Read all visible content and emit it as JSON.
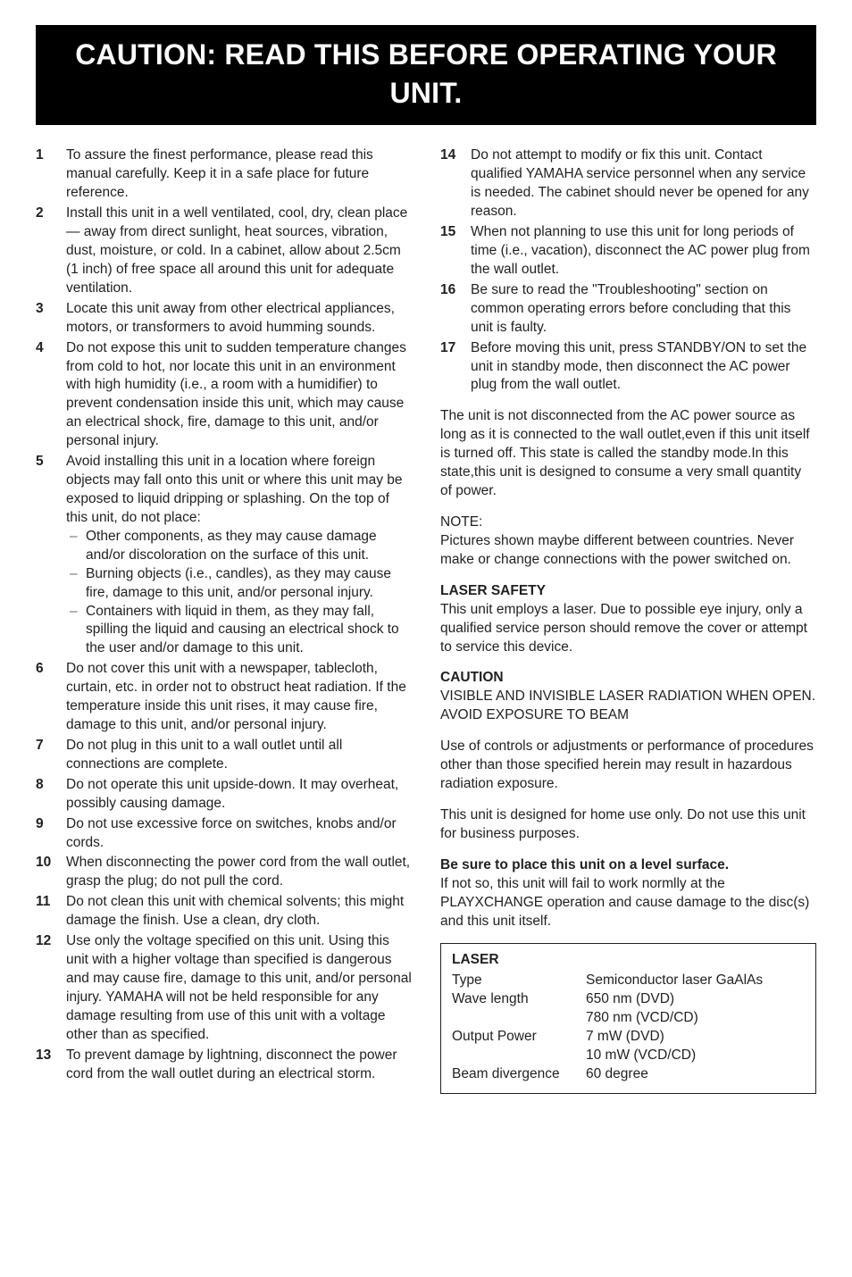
{
  "banner": "CAUTION: READ THIS BEFORE OPERATING YOUR UNIT.",
  "left": {
    "items": [
      {
        "n": "1",
        "t": "To assure the finest performance, please read this manual carefully. Keep it in a safe place for future reference."
      },
      {
        "n": "2",
        "t": "Install this unit in a well ventilated, cool, dry, clean place — away from direct sunlight, heat sources, vibration, dust, moisture, or cold. In a cabinet, allow about 2.5cm (1 inch) of free space all around this unit for adequate ventilation."
      },
      {
        "n": "3",
        "t": "Locate this unit away from other electrical appliances, motors, or transformers to avoid humming sounds."
      },
      {
        "n": "4",
        "t": "Do not expose this unit to sudden temperature changes from cold to hot, nor locate this unit in an environment with high humidity (i.e., a room with a humidifier) to prevent condensation inside this unit, which may cause an electrical shock, fire, damage to this unit, and/or personal injury."
      },
      {
        "n": "5",
        "t": "Avoid installing this unit in a location where foreign objects may fall onto this unit or where this unit may be exposed to liquid dripping or splashing. On the top of this unit, do not place:",
        "subs": [
          "Other components, as they may cause damage and/or discoloration on the surface of this unit.",
          "Burning objects (i.e., candles), as they may cause fire, damage to this unit, and/or personal injury.",
          "Containers with liquid in them, as they may fall, spilling the liquid and causing an electrical shock to the user and/or damage to this unit."
        ]
      },
      {
        "n": "6",
        "t": "Do not cover this unit with a newspaper, tablecloth, curtain, etc. in order not to obstruct heat radiation. If the temperature inside this unit rises, it may cause fire, damage to this unit, and/or personal injury."
      },
      {
        "n": "7",
        "t": "Do not plug in this unit to a wall outlet until all connections are complete."
      },
      {
        "n": "8",
        "t": "Do not operate this unit upside-down. It may overheat, possibly causing damage."
      },
      {
        "n": "9",
        "t": "Do not use excessive force on switches, knobs and/or cords."
      },
      {
        "n": "10",
        "t": "When disconnecting the power cord from the wall outlet, grasp the plug; do not pull the cord."
      },
      {
        "n": "11",
        "t": "Do not clean this unit with chemical solvents; this might damage the finish. Use a clean, dry cloth."
      },
      {
        "n": "12",
        "t": "Use only the voltage specified on this unit. Using this unit with a higher voltage than specified is dangerous and may cause fire, damage to this unit, and/or personal injury. YAMAHA will not be held responsible for any damage resulting from use of this unit with a voltage other than as specified."
      },
      {
        "n": "13",
        "t": "To prevent damage by lightning, disconnect the power cord from the wall outlet during an electrical storm."
      }
    ]
  },
  "right": {
    "items": [
      {
        "n": "14",
        "t": "Do not attempt to modify or fix this unit. Contact qualified YAMAHA service personnel when any service is needed. The cabinet should never be opened for any reason."
      },
      {
        "n": "15",
        "t": "When not planning to use this unit for long periods of time (i.e., vacation), disconnect the AC power plug from the wall outlet."
      },
      {
        "n": "16",
        "t": "Be sure to read the \"Troubleshooting\" section on common operating errors before concluding that this unit is faulty."
      },
      {
        "n": "17",
        "t": "Before moving this unit, press STANDBY/ON to set the unit in standby mode, then disconnect the AC power plug from the wall outlet."
      }
    ],
    "disconnect_para": "The unit is not disconnected from the AC power source as long as it is connected to the wall outlet,even if this unit itself is turned off. This state is called the standby mode.In this state,this unit is designed to consume a very small quantity of power.",
    "note_label": "NOTE:",
    "note_body": "Pictures shown maybe different between countries. Never make or change connections with the power switched on.",
    "laser_safety_head": "LASER SAFETY",
    "laser_safety_body": "This unit employs a laser. Due to possible eye injury, only a qualified service person should remove the cover or attempt to service this device.",
    "caution_head": "CAUTION",
    "caution_body": "VISIBLE AND INVISIBLE LASER RADIATION WHEN OPEN. AVOID EXPOSURE TO BEAM",
    "controls_para": "Use of controls or adjustments or performance of procedures other than those specified herein may result in hazardous radiation exposure.",
    "home_use_para": "This unit is designed for home use only. Do not use this unit for business purposes.",
    "level_surface_head": "Be sure to place this unit on a level surface.",
    "level_surface_body": "If not so, this unit will fail to work normlly at the PLAYXCHANGE operation and cause damage to the disc(s) and this unit itself.",
    "laser_box": {
      "head": "LASER",
      "rows": [
        {
          "label": "Type",
          "value": "Semiconductor laser GaAlAs"
        },
        {
          "label": "Wave length",
          "value": "650 nm (DVD)"
        },
        {
          "label": "",
          "value": "780 nm (VCD/CD)"
        },
        {
          "label": "Output Power",
          "value": "7 mW (DVD)"
        },
        {
          "label": "",
          "value": "10 mW (VCD/CD)"
        },
        {
          "label": "Beam divergence",
          "value": "60 degree"
        }
      ]
    }
  }
}
